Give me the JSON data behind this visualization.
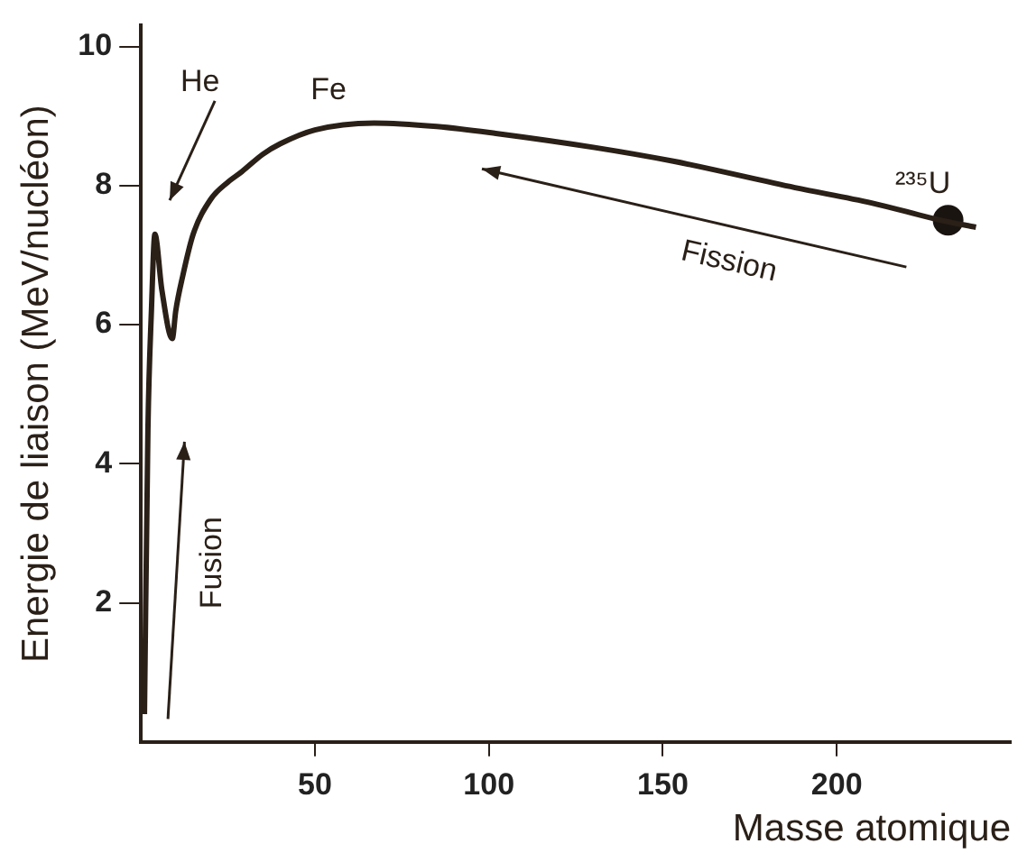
{
  "chart_data": {
    "type": "line",
    "xlabel": "Masse atomique",
    "ylabel": "Energie de liaison (MeV/nucléon)",
    "xlim": [
      0,
      250
    ],
    "ylim": [
      0,
      10.3
    ],
    "xticks": [
      50,
      100,
      150,
      200
    ],
    "yticks": [
      2,
      4,
      6,
      8,
      10
    ],
    "grid": false,
    "legend": false,
    "series": [
      {
        "color": "#2a2018",
        "marker": "none",
        "line_style": "solid",
        "x": [
          1,
          2,
          3,
          4,
          6,
          9,
          10,
          12,
          15,
          20,
          25,
          29,
          35,
          40,
          50,
          67,
          85,
          102,
          130,
          153,
          188,
          210,
          230,
          240
        ],
        "values": [
          0.4,
          4.5,
          6.2,
          7.3,
          6.5,
          5.8,
          6.2,
          6.7,
          7.3,
          7.8,
          8.05,
          8.2,
          8.45,
          8.6,
          8.8,
          8.9,
          8.85,
          8.75,
          8.55,
          8.35,
          7.97,
          7.75,
          7.5,
          7.4
        ]
      },
      {
        "type": "scatter",
        "color": "#1a1410",
        "marker": "circle",
        "x": [
          232
        ],
        "values": [
          7.5
        ]
      }
    ],
    "annotations": [
      "He",
      {
        "text": "Fe",
        "x": 56,
        "y": 8.9
      },
      {
        "text": "²³⁵U",
        "x": 232,
        "y": 7.5
      },
      "Fusion",
      "Fission"
    ]
  }
}
